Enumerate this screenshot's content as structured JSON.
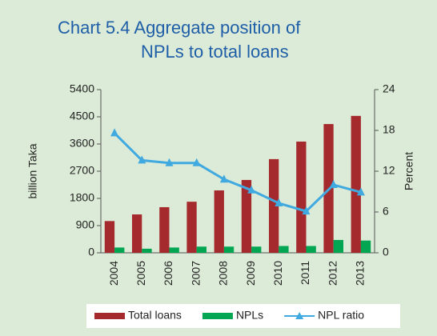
{
  "chart_data": {
    "type": "bar-line",
    "title": [
      "Chart 5.4  Aggregate position of",
      "NPLs to total loans"
    ],
    "ylabel": "billion Taka",
    "y2label": "Percent",
    "categories": [
      "2004",
      "2005",
      "2006",
      "2007",
      "2008",
      "2009",
      "2010",
      "2011",
      "2012",
      "2013"
    ],
    "series": [
      {
        "name": "Total loans",
        "type": "bar",
        "color": "#a52a2d",
        "values": [
          1050,
          1270,
          1510,
          1690,
          2065,
          2410,
          3100,
          3680,
          4260,
          4530
        ]
      },
      {
        "name": "NPLs",
        "type": "bar",
        "color": "#00a651",
        "values": [
          175,
          135,
          175,
          205,
          205,
          205,
          225,
          225,
          425,
          405
        ]
      },
      {
        "name": "NPL ratio",
        "type": "line",
        "axis": "y2",
        "color": "#3fa9e0",
        "values": [
          17.6,
          13.6,
          13.2,
          13.2,
          10.8,
          9.2,
          7.3,
          6.1,
          10.0,
          8.9
        ]
      }
    ],
    "ylim": [
      0,
      5400
    ],
    "yticks": [
      0,
      900,
      1800,
      2700,
      3600,
      4500,
      5400
    ],
    "y2lim": [
      0,
      24
    ],
    "y2ticks": [
      0,
      6,
      12,
      18,
      24
    ],
    "legend": "bottom"
  }
}
